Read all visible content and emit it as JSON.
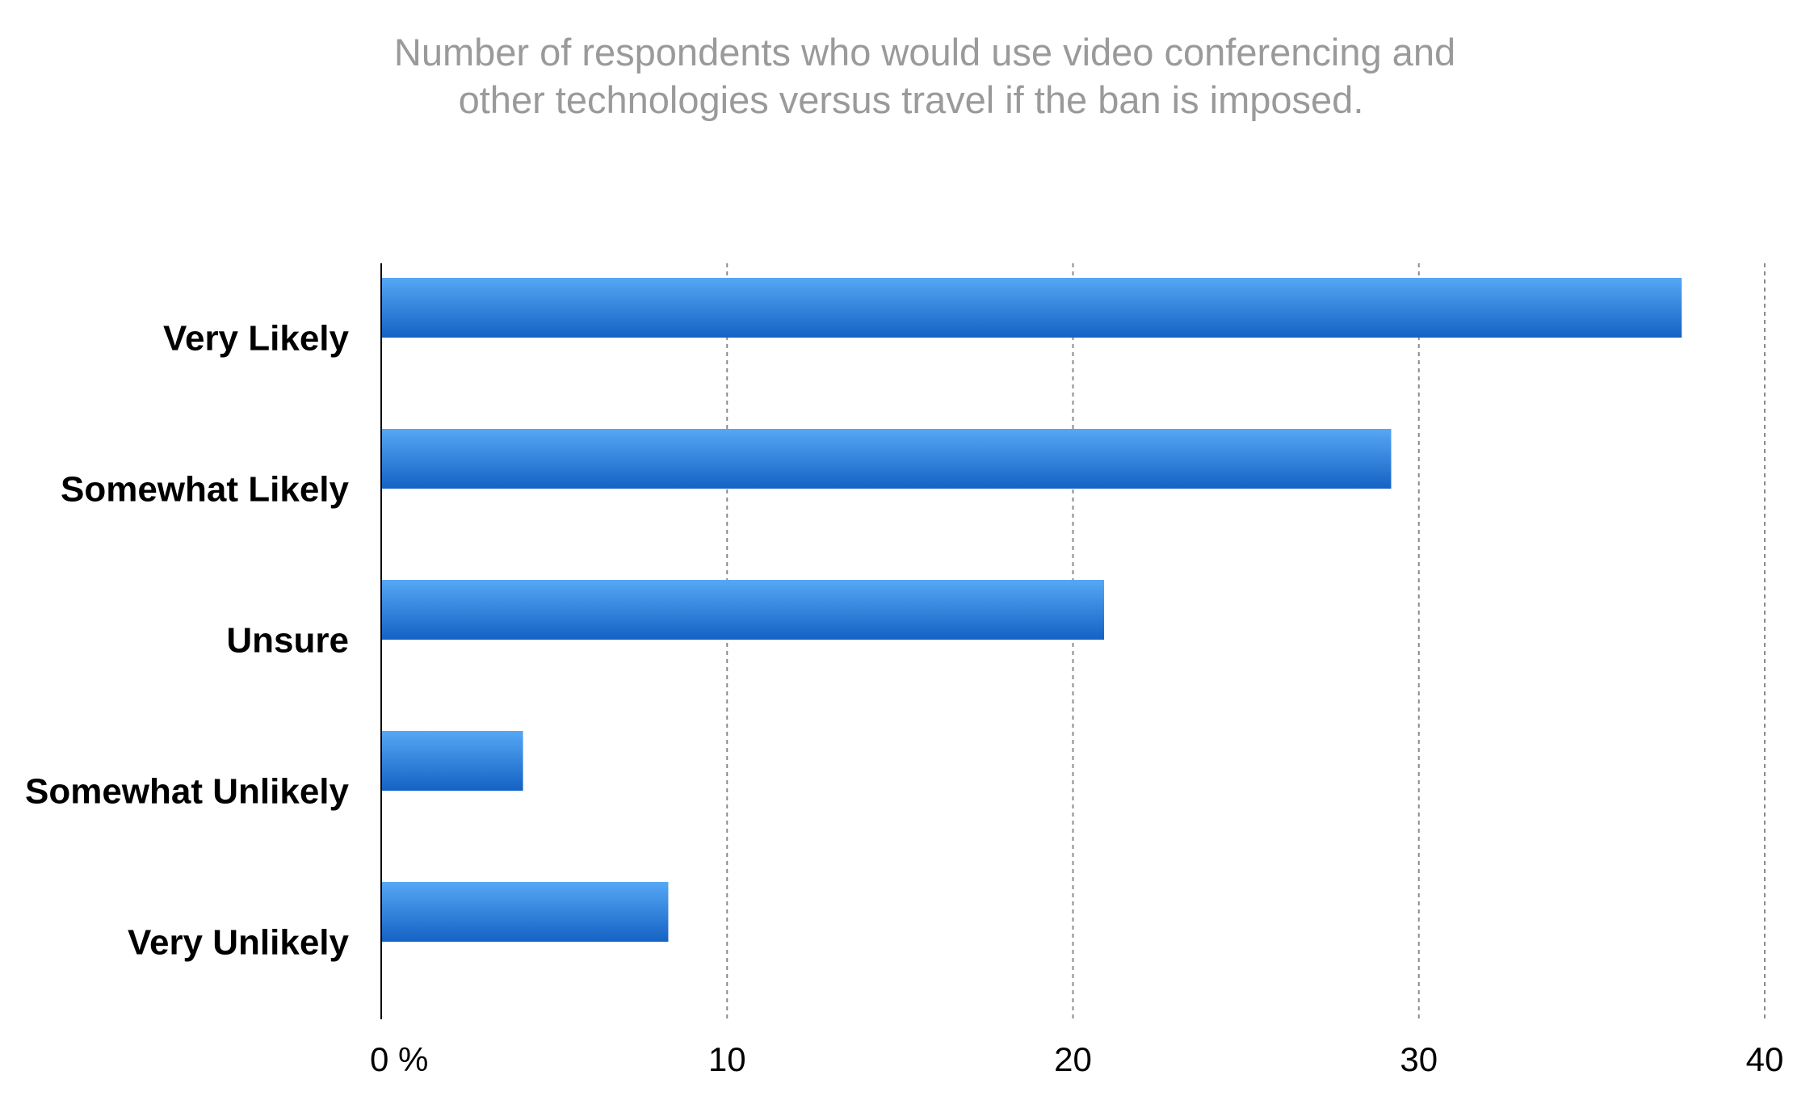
{
  "chart_data": {
    "type": "bar",
    "orientation": "horizontal",
    "title": "Number of respondents who would use video conferencing and other technologies versus travel if the ban is imposed.",
    "title_lines": [
      "Number of respondents who would use video conferencing and",
      "other technologies versus travel if the ban is imposed."
    ],
    "categories": [
      "Very Likely",
      "Somewhat Likely",
      "Unsure",
      "Somewhat Unlikely",
      "Very Unlikely"
    ],
    "values": [
      37.6,
      29.2,
      20.9,
      4.1,
      8.3
    ],
    "xlim": [
      0,
      40
    ],
    "x_ticks": [
      0,
      10,
      20,
      30,
      40
    ],
    "x_tick_labels": [
      "0 %",
      "10",
      "20",
      "30",
      "40"
    ],
    "xlabel": "",
    "ylabel": "",
    "grid": "vertical dashed",
    "legend": "none",
    "bar_color_top": "#56a7f5",
    "bar_color_bottom": "#1462c4"
  }
}
